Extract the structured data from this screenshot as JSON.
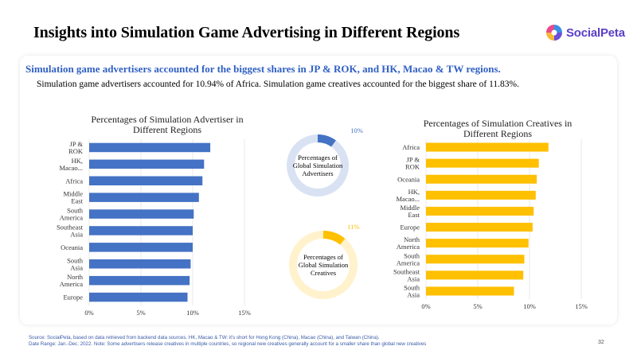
{
  "slide": {
    "title": "Insights into Simulation Game Advertising in Different Regions",
    "headline": "Simulation game advertisers accounted for the biggest shares in JP & ROK, and HK, Macao & TW regions.",
    "subline": "Simulation game advertisers accounted for 10.94% of Africa. Simulation game creatives accounted for the biggest share of 11.83%.",
    "page_number": "32"
  },
  "logo": {
    "text": "SocialPeta",
    "colors": [
      "#e84a8a",
      "#3a8ee6",
      "#6b4fd8",
      "#f5b93a"
    ]
  },
  "colors": {
    "advertiser_bar": "#4472c4",
    "creative_bar": "#ffc000",
    "donut_adv_track": "#d9e2f3",
    "donut_cre_track": "#fff2cc",
    "headline": "#2f5fc4"
  },
  "footer": {
    "line1": "Source: SocialPeta, based on data retrieved from backend data sources. HK, Macao & TW: it's short for Hong Kong (China), Macao (China), and Taiwan (China).",
    "line2": "Date Range: Jan.-Dec. 2022. Note: Some advertisers release creatives in multiple countries, so regional new creatives generally account for a smaller share than global new creatives"
  },
  "chart_data": [
    {
      "type": "bar",
      "orientation": "horizontal",
      "title": "Percentages of Simulation Advertiser in Different Regions",
      "categories": [
        "JP & ROK",
        "HK, Macao...",
        "Africa",
        "Middle East",
        "South America",
        "Southeast Asia",
        "Oceania",
        "South Asia",
        "North America",
        "Europe"
      ],
      "values": [
        11.7,
        11.1,
        10.94,
        10.6,
        10.1,
        10.0,
        10.0,
        9.8,
        9.7,
        9.5
      ],
      "xticks": [
        "0%",
        "5%",
        "10%",
        "15%"
      ],
      "xlim": [
        0,
        15
      ],
      "grid": true
    },
    {
      "type": "pie",
      "variant": "donut",
      "label": "Percentages of Global Simulation Advertisers",
      "value": 10,
      "value_label": "10%"
    },
    {
      "type": "pie",
      "variant": "donut",
      "label": "Percentages of Global Simulation Creatives",
      "value": 11,
      "value_label": "11%"
    },
    {
      "type": "bar",
      "orientation": "horizontal",
      "title": "Percentages of Simulation Creatives in Different Regions",
      "categories": [
        "Africa",
        "JP & ROK",
        "Oceania",
        "HK, Macao...",
        "Middle East",
        "Europe",
        "North America",
        "South America",
        "Southeast Asia",
        "South Asia"
      ],
      "values": [
        11.83,
        10.9,
        10.7,
        10.6,
        10.4,
        10.3,
        9.9,
        9.5,
        9.4,
        8.5
      ],
      "xticks": [
        "0%",
        "5%",
        "10%",
        "15%"
      ],
      "xlim": [
        0,
        15
      ],
      "grid": true
    }
  ]
}
